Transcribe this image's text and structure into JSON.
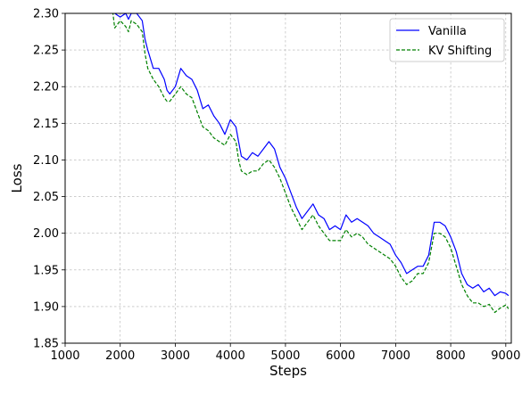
{
  "chart_data": {
    "type": "line",
    "title": "",
    "xlabel": "Steps",
    "ylabel": "Loss",
    "xlim": [
      1000,
      9100
    ],
    "ylim": [
      1.85,
      2.3
    ],
    "xticks": [
      1000,
      2000,
      3000,
      4000,
      5000,
      6000,
      7000,
      8000,
      9000
    ],
    "xtick_labels": [
      "1000",
      "2000",
      "3000",
      "4000",
      "5000",
      "6000",
      "7000",
      "8000",
      "9000"
    ],
    "yticks": [
      1.85,
      1.9,
      1.95,
      2.0,
      2.05,
      2.1,
      2.15,
      2.2,
      2.25,
      2.3
    ],
    "ytick_labels": [
      "1.85",
      "1.90",
      "1.95",
      "2.00",
      "2.05",
      "2.10",
      "2.15",
      "2.20",
      "2.25",
      "2.30"
    ],
    "grid": true,
    "legend_position": "top-right",
    "series": [
      {
        "name": "Vanilla",
        "color": "#0000ff",
        "style": "solid",
        "points": [
          [
            1850,
            2.31
          ],
          [
            1900,
            2.3
          ],
          [
            2000,
            2.295
          ],
          [
            2100,
            2.3
          ],
          [
            2150,
            2.292
          ],
          [
            2200,
            2.3
          ],
          [
            2300,
            2.3
          ],
          [
            2400,
            2.29
          ],
          [
            2450,
            2.265
          ],
          [
            2500,
            2.25
          ],
          [
            2600,
            2.225
          ],
          [
            2700,
            2.225
          ],
          [
            2800,
            2.21
          ],
          [
            2850,
            2.195
          ],
          [
            2900,
            2.19
          ],
          [
            3000,
            2.2
          ],
          [
            3100,
            2.225
          ],
          [
            3200,
            2.215
          ],
          [
            3300,
            2.21
          ],
          [
            3400,
            2.195
          ],
          [
            3500,
            2.17
          ],
          [
            3600,
            2.175
          ],
          [
            3700,
            2.16
          ],
          [
            3800,
            2.15
          ],
          [
            3900,
            2.135
          ],
          [
            4000,
            2.155
          ],
          [
            4100,
            2.145
          ],
          [
            4150,
            2.125
          ],
          [
            4200,
            2.105
          ],
          [
            4300,
            2.1
          ],
          [
            4400,
            2.11
          ],
          [
            4500,
            2.105
          ],
          [
            4600,
            2.115
          ],
          [
            4700,
            2.125
          ],
          [
            4800,
            2.115
          ],
          [
            4900,
            2.09
          ],
          [
            5000,
            2.075
          ],
          [
            5100,
            2.055
          ],
          [
            5200,
            2.035
          ],
          [
            5300,
            2.02
          ],
          [
            5400,
            2.03
          ],
          [
            5500,
            2.04
          ],
          [
            5600,
            2.025
          ],
          [
            5700,
            2.02
          ],
          [
            5800,
            2.005
          ],
          [
            5900,
            2.01
          ],
          [
            6000,
            2.005
          ],
          [
            6100,
            2.025
          ],
          [
            6200,
            2.015
          ],
          [
            6300,
            2.02
          ],
          [
            6400,
            2.015
          ],
          [
            6500,
            2.01
          ],
          [
            6600,
            2.0
          ],
          [
            6700,
            1.995
          ],
          [
            6800,
            1.99
          ],
          [
            6900,
            1.985
          ],
          [
            7000,
            1.97
          ],
          [
            7100,
            1.96
          ],
          [
            7200,
            1.945
          ],
          [
            7300,
            1.95
          ],
          [
            7400,
            1.955
          ],
          [
            7500,
            1.955
          ],
          [
            7600,
            1.97
          ],
          [
            7700,
            2.015
          ],
          [
            7800,
            2.015
          ],
          [
            7900,
            2.01
          ],
          [
            8000,
            1.995
          ],
          [
            8100,
            1.975
          ],
          [
            8200,
            1.945
          ],
          [
            8300,
            1.93
          ],
          [
            8400,
            1.925
          ],
          [
            8500,
            1.93
          ],
          [
            8600,
            1.92
          ],
          [
            8700,
            1.925
          ],
          [
            8800,
            1.915
          ],
          [
            8900,
            1.92
          ],
          [
            9000,
            1.918
          ],
          [
            9050,
            1.915
          ]
        ]
      },
      {
        "name": "KV Shifting",
        "color": "#008000",
        "style": "dashed",
        "points": [
          [
            1850,
            2.31
          ],
          [
            1900,
            2.28
          ],
          [
            2000,
            2.29
          ],
          [
            2100,
            2.282
          ],
          [
            2150,
            2.275
          ],
          [
            2200,
            2.29
          ],
          [
            2300,
            2.285
          ],
          [
            2400,
            2.275
          ],
          [
            2450,
            2.245
          ],
          [
            2500,
            2.225
          ],
          [
            2600,
            2.21
          ],
          [
            2700,
            2.2
          ],
          [
            2800,
            2.185
          ],
          [
            2850,
            2.18
          ],
          [
            2900,
            2.18
          ],
          [
            3000,
            2.19
          ],
          [
            3100,
            2.2
          ],
          [
            3200,
            2.19
          ],
          [
            3300,
            2.185
          ],
          [
            3400,
            2.165
          ],
          [
            3500,
            2.145
          ],
          [
            3600,
            2.14
          ],
          [
            3700,
            2.13
          ],
          [
            3800,
            2.125
          ],
          [
            3900,
            2.12
          ],
          [
            4000,
            2.135
          ],
          [
            4100,
            2.125
          ],
          [
            4150,
            2.1
          ],
          [
            4200,
            2.085
          ],
          [
            4300,
            2.08
          ],
          [
            4400,
            2.085
          ],
          [
            4500,
            2.085
          ],
          [
            4600,
            2.095
          ],
          [
            4700,
            2.1
          ],
          [
            4800,
            2.09
          ],
          [
            4900,
            2.075
          ],
          [
            5000,
            2.055
          ],
          [
            5100,
            2.035
          ],
          [
            5200,
            2.02
          ],
          [
            5300,
            2.005
          ],
          [
            5400,
            2.015
          ],
          [
            5500,
            2.025
          ],
          [
            5600,
            2.01
          ],
          [
            5700,
            2.0
          ],
          [
            5800,
            1.99
          ],
          [
            5900,
            1.99
          ],
          [
            6000,
            1.99
          ],
          [
            6100,
            2.005
          ],
          [
            6200,
            1.995
          ],
          [
            6300,
            2.0
          ],
          [
            6400,
            1.995
          ],
          [
            6500,
            1.985
          ],
          [
            6600,
            1.98
          ],
          [
            6700,
            1.975
          ],
          [
            6800,
            1.97
          ],
          [
            6900,
            1.965
          ],
          [
            7000,
            1.955
          ],
          [
            7100,
            1.94
          ],
          [
            7200,
            1.93
          ],
          [
            7300,
            1.935
          ],
          [
            7400,
            1.945
          ],
          [
            7500,
            1.945
          ],
          [
            7600,
            1.96
          ],
          [
            7700,
            2.0
          ],
          [
            7800,
            2.0
          ],
          [
            7900,
            1.995
          ],
          [
            8000,
            1.98
          ],
          [
            8100,
            1.955
          ],
          [
            8200,
            1.93
          ],
          [
            8300,
            1.915
          ],
          [
            8400,
            1.905
          ],
          [
            8500,
            1.905
          ],
          [
            8600,
            1.9
          ],
          [
            8700,
            1.903
          ],
          [
            8800,
            1.892
          ],
          [
            8900,
            1.898
          ],
          [
            9000,
            1.902
          ],
          [
            9050,
            1.897
          ]
        ]
      }
    ]
  }
}
